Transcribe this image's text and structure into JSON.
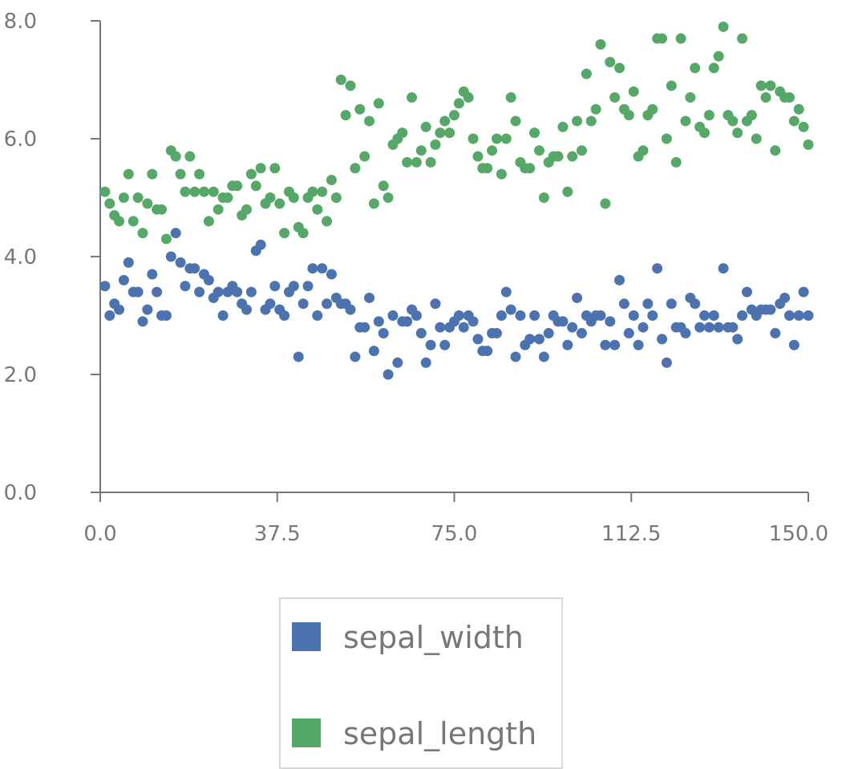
{
  "chart_data": {
    "type": "scatter",
    "title": "",
    "xlabel": "",
    "ylabel": "",
    "xlim": [
      0,
      150
    ],
    "ylim": [
      0,
      8
    ],
    "x_ticks": [
      "0.0",
      "37.5",
      "75.0",
      "112.5",
      "150.0"
    ],
    "y_ticks": [
      "0.0",
      "2.0",
      "4.0",
      "6.0",
      "8.0"
    ],
    "grid": false,
    "legend_position": "bottom-center",
    "series": [
      {
        "name": "sepal_width",
        "color": "#4c72b0",
        "values": [
          3.5,
          3.0,
          3.2,
          3.1,
          3.6,
          3.9,
          3.4,
          3.4,
          2.9,
          3.1,
          3.7,
          3.4,
          3.0,
          3.0,
          4.0,
          4.4,
          3.9,
          3.5,
          3.8,
          3.8,
          3.4,
          3.7,
          3.6,
          3.3,
          3.4,
          3.0,
          3.4,
          3.5,
          3.4,
          3.2,
          3.1,
          3.4,
          4.1,
          4.2,
          3.1,
          3.2,
          3.5,
          3.1,
          3.0,
          3.4,
          3.5,
          2.3,
          3.2,
          3.5,
          3.8,
          3.0,
          3.8,
          3.2,
          3.7,
          3.3,
          3.2,
          3.2,
          3.1,
          2.3,
          2.8,
          2.8,
          3.3,
          2.4,
          2.9,
          2.7,
          2.0,
          3.0,
          2.2,
          2.9,
          2.9,
          3.1,
          3.0,
          2.7,
          2.2,
          2.5,
          3.2,
          2.8,
          2.5,
          2.8,
          2.9,
          3.0,
          2.8,
          3.0,
          2.9,
          2.6,
          2.4,
          2.4,
          2.7,
          2.7,
          3.0,
          3.4,
          3.1,
          2.3,
          3.0,
          2.5,
          2.6,
          3.0,
          2.6,
          2.3,
          2.7,
          3.0,
          2.9,
          2.9,
          2.5,
          2.8,
          3.3,
          2.7,
          3.0,
          2.9,
          3.0,
          3.0,
          2.5,
          2.9,
          2.5,
          3.6,
          3.2,
          2.7,
          3.0,
          2.5,
          2.8,
          3.2,
          3.0,
          3.8,
          2.6,
          2.2,
          3.2,
          2.8,
          2.8,
          2.7,
          3.3,
          3.2,
          2.8,
          3.0,
          2.8,
          3.0,
          2.8,
          3.8,
          2.8,
          2.8,
          2.6,
          3.0,
          3.4,
          3.1,
          3.0,
          3.1,
          3.1,
          3.1,
          2.7,
          3.2,
          3.3,
          3.0,
          2.5,
          3.0,
          3.4,
          3.0
        ]
      },
      {
        "name": "sepal_length",
        "color": "#55a868",
        "values": [
          5.1,
          4.9,
          4.7,
          4.6,
          5.0,
          5.4,
          4.6,
          5.0,
          4.4,
          4.9,
          5.4,
          4.8,
          4.8,
          4.3,
          5.8,
          5.7,
          5.4,
          5.1,
          5.7,
          5.1,
          5.4,
          5.1,
          4.6,
          5.1,
          4.8,
          5.0,
          5.0,
          5.2,
          5.2,
          4.7,
          4.8,
          5.4,
          5.2,
          5.5,
          4.9,
          5.0,
          5.5,
          4.9,
          4.4,
          5.1,
          5.0,
          4.5,
          4.4,
          5.0,
          5.1,
          4.8,
          5.1,
          4.6,
          5.3,
          5.0,
          7.0,
          6.4,
          6.9,
          5.5,
          6.5,
          5.7,
          6.3,
          4.9,
          6.6,
          5.2,
          5.0,
          5.9,
          6.0,
          6.1,
          5.6,
          6.7,
          5.6,
          5.8,
          6.2,
          5.6,
          5.9,
          6.1,
          6.3,
          6.1,
          6.4,
          6.6,
          6.8,
          6.7,
          6.0,
          5.7,
          5.5,
          5.5,
          5.8,
          6.0,
          5.4,
          6.0,
          6.7,
          6.3,
          5.6,
          5.5,
          5.5,
          6.1,
          5.8,
          5.0,
          5.6,
          5.7,
          5.7,
          6.2,
          5.1,
          5.7,
          6.3,
          5.8,
          7.1,
          6.3,
          6.5,
          7.6,
          4.9,
          7.3,
          6.7,
          7.2,
          6.5,
          6.4,
          6.8,
          5.7,
          5.8,
          6.4,
          6.5,
          7.7,
          7.7,
          6.0,
          6.9,
          5.6,
          7.7,
          6.3,
          6.7,
          7.2,
          6.2,
          6.1,
          6.4,
          7.2,
          7.4,
          7.9,
          6.4,
          6.3,
          6.1,
          7.7,
          6.3,
          6.4,
          6.0,
          6.9,
          6.7,
          6.9,
          5.8,
          6.8,
          6.7,
          6.7,
          6.3,
          6.5,
          6.2,
          5.9
        ]
      }
    ]
  }
}
